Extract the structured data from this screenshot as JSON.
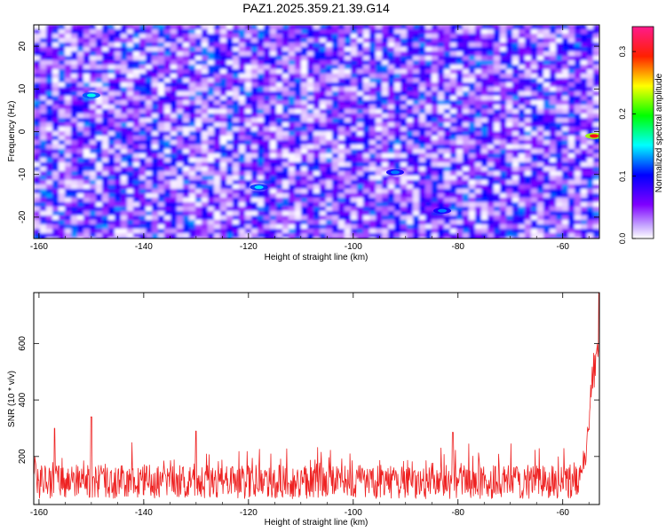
{
  "title": "PAZ1.2025.359.21.39.G14",
  "chart_data": [
    {
      "type": "heatmap",
      "title": "PAZ1.2025.359.21.39.G14",
      "xlabel": "Height of straight line (km)",
      "ylabel": "Frequency (Hz)",
      "xlim": [
        -161,
        -53
      ],
      "ylim": [
        -25,
        25
      ],
      "x_reversed_sign": false,
      "xticks": [
        "-160",
        "-140",
        "-120",
        "-100",
        "-80",
        "-60"
      ],
      "yticks": [
        "-20",
        "-10",
        "0",
        "10",
        "20"
      ],
      "colorbar": {
        "label": "Normalized spectral amplitude",
        "range": [
          0.0,
          0.34
        ],
        "ticks": [
          "0.0",
          "0.1",
          "0.2",
          "0.3"
        ],
        "colormap": [
          "#ffffff",
          "#7f00ff",
          "#0000ff",
          "#00ffff",
          "#00ff00",
          "#ffff00",
          "#ff0000",
          "#ff1a8c"
        ]
      },
      "typical_amplitude_range": [
        0.0,
        0.12
      ],
      "hotspots": [
        {
          "x": -54,
          "y": -1,
          "value": 0.3
        },
        {
          "x": -150,
          "y": 8.5,
          "value": 0.15
        },
        {
          "x": -118,
          "y": -13,
          "value": 0.14
        },
        {
          "x": -92,
          "y": -9.5,
          "value": 0.12
        },
        {
          "x": -83,
          "y": -18.5,
          "value": 0.12
        }
      ]
    },
    {
      "type": "line",
      "xlabel": "Height of straight line (km)",
      "ylabel": "SNR (10 * v/v)",
      "xlim": [
        -161,
        -53
      ],
      "ylim": [
        30,
        780
      ],
      "xticks": [
        "-160",
        "-140",
        "-120",
        "-100",
        "-80",
        "-60"
      ],
      "yticks": [
        "200",
        "400",
        "600"
      ],
      "series": [
        {
          "color": "#ee2222",
          "baseline": 110,
          "noise_range": [
            40,
            250
          ],
          "spikes": [
            {
              "x": -150,
              "y": 340
            },
            {
              "x": -157,
              "y": 300
            },
            {
              "x": -130,
              "y": 290
            },
            {
              "x": -81,
              "y": 285
            }
          ],
          "tail_rise": [
            {
              "x": -57,
              "y": 130
            },
            {
              "x": -55.5,
              "y": 230
            },
            {
              "x": -54.5,
              "y": 430
            },
            {
              "x": -53.8,
              "y": 620
            },
            {
              "x": -53.3,
              "y": 660
            },
            {
              "x": -53,
              "y": 780
            }
          ]
        }
      ]
    }
  ]
}
